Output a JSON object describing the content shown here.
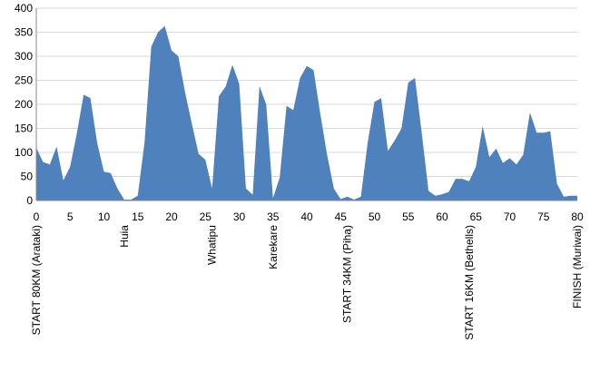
{
  "chart_data": {
    "type": "area",
    "title": "",
    "xlabel": "",
    "ylabel": "",
    "xlim": [
      0,
      80
    ],
    "ylim": [
      0,
      400
    ],
    "x_ticks": [
      0,
      5,
      10,
      15,
      20,
      25,
      30,
      35,
      40,
      45,
      50,
      55,
      60,
      65,
      70,
      75,
      80
    ],
    "y_ticks": [
      0,
      50,
      100,
      150,
      200,
      250,
      300,
      350,
      400
    ],
    "grid": "horizontal",
    "legend": "none",
    "fill_color": "#4F81BD",
    "gridline_color": "#D9D9D9",
    "x": [
      0,
      1,
      2,
      3,
      4,
      5,
      6,
      7,
      8,
      9,
      10,
      11,
      12,
      13,
      14,
      15,
      16,
      17,
      18,
      19,
      20,
      21,
      22,
      23,
      24,
      25,
      26,
      27,
      28,
      29,
      30,
      31,
      32,
      33,
      34,
      35,
      36,
      37,
      38,
      39,
      40,
      41,
      42,
      43,
      44,
      45,
      46,
      47,
      48,
      49,
      50,
      51,
      52,
      53,
      54,
      55,
      56,
      57,
      58,
      59,
      60,
      61,
      62,
      63,
      64,
      65,
      66,
      67,
      68,
      69,
      70,
      71,
      72,
      73,
      74,
      75,
      76,
      77,
      78,
      79,
      80
    ],
    "y": [
      110,
      80,
      75,
      112,
      42,
      70,
      140,
      220,
      213,
      120,
      60,
      57,
      25,
      2,
      2,
      10,
      120,
      320,
      350,
      363,
      312,
      300,
      225,
      160,
      97,
      85,
      25,
      217,
      237,
      282,
      243,
      25,
      12,
      238,
      200,
      5,
      48,
      197,
      188,
      255,
      280,
      271,
      180,
      95,
      25,
      3,
      8,
      2,
      8,
      120,
      205,
      213,
      103,
      125,
      150,
      245,
      255,
      140,
      20,
      10,
      13,
      18,
      45,
      45,
      40,
      70,
      155,
      90,
      108,
      78,
      88,
      75,
      95,
      183,
      141,
      141,
      144,
      35,
      8,
      10,
      10
    ],
    "annotations": [
      {
        "x": 0,
        "label": "START 80KM (Arataki)"
      },
      {
        "x": 13,
        "label": "Huia"
      },
      {
        "x": 26,
        "label": "Whatipu"
      },
      {
        "x": 35,
        "label": "Karekare"
      },
      {
        "x": 46,
        "label": "START 34KM (Piha)"
      },
      {
        "x": 64,
        "label": "START 16KM (Bethells)"
      },
      {
        "x": 80,
        "label": "FINISH (Muriwai)"
      }
    ]
  }
}
